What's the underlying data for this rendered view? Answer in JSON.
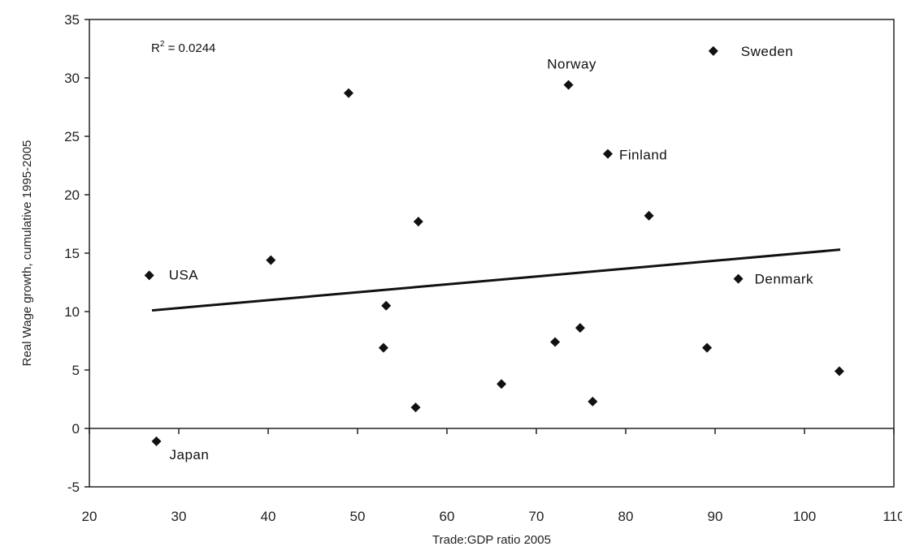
{
  "chart_data": {
    "type": "scatter",
    "title": "",
    "xlabel": "Trade:GDP ratio 2005",
    "ylabel": "Real Wage growth, cumulative 1995-2005",
    "xlim": [
      20,
      110
    ],
    "ylim": [
      -5,
      35
    ],
    "xticks": [
      20,
      30,
      40,
      50,
      60,
      70,
      80,
      90,
      100,
      110
    ],
    "yticks": [
      -5,
      0,
      5,
      10,
      15,
      20,
      25,
      30,
      35
    ],
    "grid": false,
    "annotation": {
      "r2_label": "R",
      "r2_sup": "2",
      "r2_value": " = 0.0244"
    },
    "trendline": {
      "x": [
        27,
        104
      ],
      "y": [
        10.1,
        15.3
      ]
    },
    "points": [
      {
        "x": 26.7,
        "y": 13.1,
        "label": "USA"
      },
      {
        "x": 27.5,
        "y": -1.1,
        "label": "Japan"
      },
      {
        "x": 40.3,
        "y": 14.4,
        "label": ""
      },
      {
        "x": 49.0,
        "y": 28.7,
        "label": ""
      },
      {
        "x": 52.9,
        "y": 6.9,
        "label": ""
      },
      {
        "x": 53.2,
        "y": 10.5,
        "label": ""
      },
      {
        "x": 56.5,
        "y": 1.8,
        "label": ""
      },
      {
        "x": 56.8,
        "y": 17.7,
        "label": ""
      },
      {
        "x": 66.1,
        "y": 3.8,
        "label": ""
      },
      {
        "x": 72.1,
        "y": 7.4,
        "label": ""
      },
      {
        "x": 73.6,
        "y": 29.4,
        "label": "Norway"
      },
      {
        "x": 74.9,
        "y": 8.6,
        "label": ""
      },
      {
        "x": 76.3,
        "y": 2.3,
        "label": ""
      },
      {
        "x": 78.0,
        "y": 23.5,
        "label": "Finland"
      },
      {
        "x": 82.6,
        "y": 18.2,
        "label": ""
      },
      {
        "x": 89.1,
        "y": 6.9,
        "label": ""
      },
      {
        "x": 89.8,
        "y": 32.3,
        "label": "Sweden"
      },
      {
        "x": 92.6,
        "y": 12.8,
        "label": "Denmark"
      },
      {
        "x": 103.9,
        "y": 4.9,
        "label": ""
      }
    ]
  }
}
